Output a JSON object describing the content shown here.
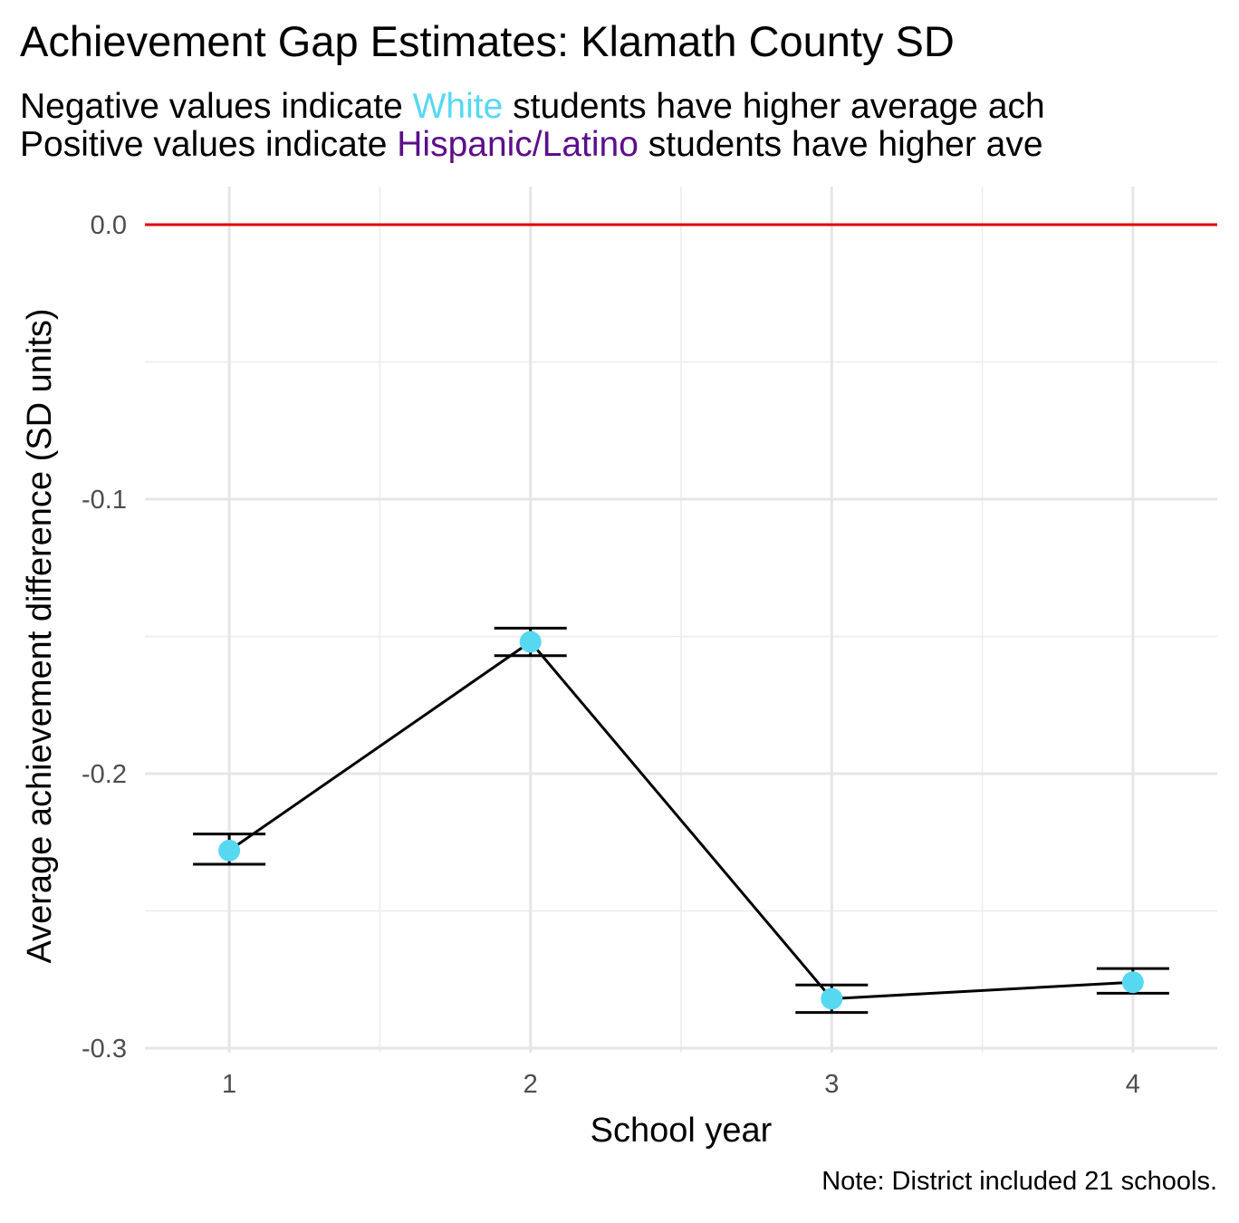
{
  "chart_data": {
    "type": "line",
    "title": "Achievement Gap Estimates: Klamath County SD",
    "subtitle": [
      {
        "before": "Negative values indicate ",
        "highlight": "White",
        "highlight_color": "#56D8F0",
        "after": " students have higher average ach"
      },
      {
        "before": "Positive values indicate ",
        "highlight": "Hispanic/Latino",
        "highlight_color": "#5C0E8B",
        "after": " students have higher ave"
      }
    ],
    "xlabel": "School year",
    "ylabel": "Average achievement difference (SD units)",
    "caption": "Note: District included 21 schools.",
    "x_ticks": [
      "1",
      "2",
      "3",
      "4"
    ],
    "y_ticks": [
      "0.0",
      "-0.1",
      "-0.2",
      "-0.3"
    ],
    "xlim": [
      0.72,
      4.28
    ],
    "ylim": [
      -0.3,
      0.0
    ],
    "reference_line": {
      "y": 0.0,
      "color": "#E00000"
    },
    "grid": true,
    "point_color": "#56D8F0",
    "series": [
      {
        "x": [
          1,
          2,
          3,
          4
        ],
        "y": [
          -0.228,
          -0.152,
          -0.282,
          -0.276
        ],
        "error_low": [
          -0.233,
          -0.157,
          -0.287,
          -0.28
        ],
        "error_high": [
          -0.222,
          -0.147,
          -0.277,
          -0.271
        ]
      }
    ]
  }
}
